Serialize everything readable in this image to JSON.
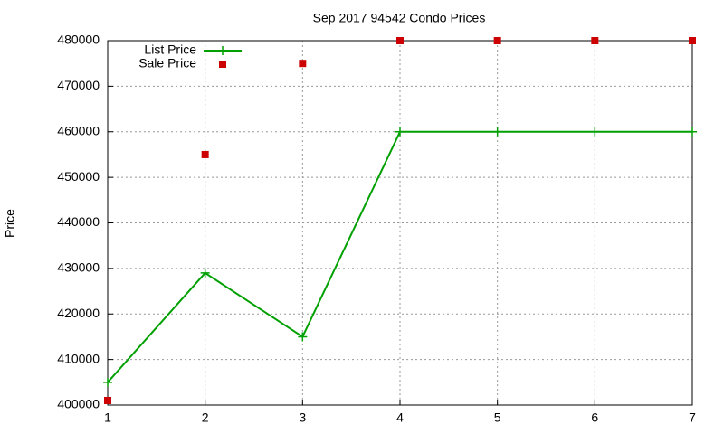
{
  "chart_data": {
    "type": "line",
    "title": "Sep 2017 94542 Condo Prices",
    "y_label": "Price",
    "x": [
      1,
      2,
      3,
      4,
      5,
      6,
      7
    ],
    "series": [
      {
        "name": "List Price",
        "type": "line",
        "color": "#00a000",
        "values": [
          405000,
          429000,
          415000,
          460000,
          460000,
          460000,
          460000
        ]
      },
      {
        "name": "Sale Price",
        "type": "scatter",
        "color": "#cc0000",
        "values": [
          401000,
          455000,
          475000,
          480000,
          480000,
          480000,
          480000
        ]
      }
    ],
    "xlim": [
      1,
      7
    ],
    "xticks": [
      1,
      2,
      3,
      4,
      5,
      6,
      7
    ],
    "ylim": [
      400000,
      480000
    ],
    "yticks": [
      400000,
      410000,
      420000,
      430000,
      440000,
      450000,
      460000,
      470000,
      480000
    ],
    "grid": true,
    "legend": "upper left"
  }
}
